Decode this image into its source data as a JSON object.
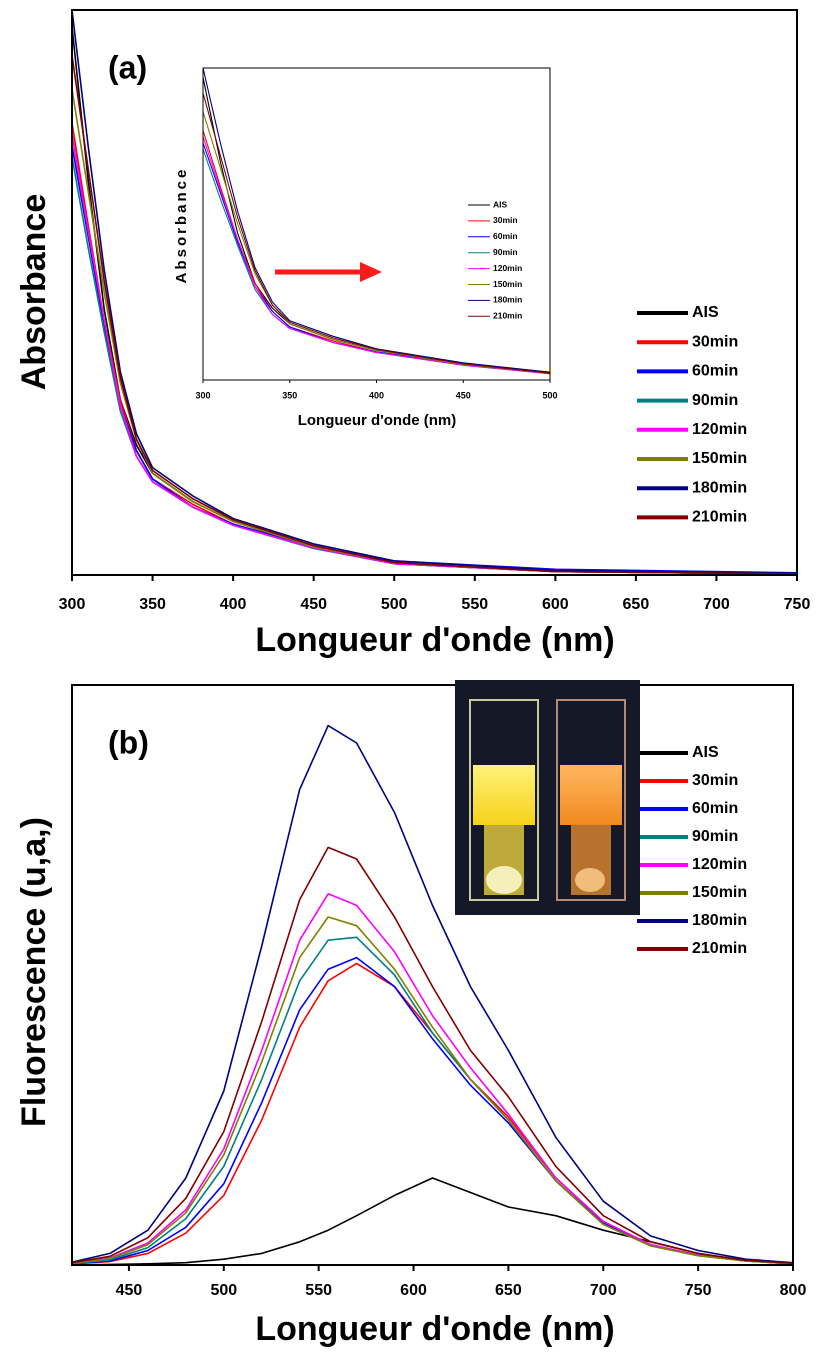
{
  "chart_data": [
    {
      "type": "line",
      "label": "(a)",
      "x_label": "Longueur d'onde (nm)",
      "y_label": "Absorbance",
      "x": [
        300,
        310,
        320,
        330,
        340,
        350,
        375,
        400,
        450,
        500,
        600,
        750
      ],
      "xlim": [
        300,
        750
      ],
      "xticks": [
        300,
        350,
        400,
        450,
        500,
        550,
        600,
        650,
        700,
        750
      ],
      "ylim": [
        0,
        1
      ],
      "series": [
        {
          "name": "AIS",
          "color": "#000000",
          "values": [
            0.97,
            0.7,
            0.47,
            0.31,
            0.23,
            0.18,
            0.13,
            0.095,
            0.05,
            0.02,
            0.006,
            0.002
          ]
        },
        {
          "name": "30min",
          "color": "#ff0000",
          "values": [
            0.8,
            0.62,
            0.45,
            0.31,
            0.22,
            0.17,
            0.125,
            0.09,
            0.048,
            0.02,
            0.006,
            0.002
          ]
        },
        {
          "name": "60min",
          "color": "#0000ff",
          "values": [
            0.76,
            0.6,
            0.44,
            0.3,
            0.22,
            0.17,
            0.12,
            0.09,
            0.05,
            0.025,
            0.01,
            0.004
          ]
        },
        {
          "name": "90min",
          "color": "#008080",
          "values": [
            0.74,
            0.58,
            0.43,
            0.29,
            0.21,
            0.165,
            0.12,
            0.088,
            0.047,
            0.02,
            0.006,
            0.002
          ]
        },
        {
          "name": "120min",
          "color": "#ff00ff",
          "values": [
            0.78,
            0.61,
            0.45,
            0.3,
            0.21,
            0.165,
            0.12,
            0.088,
            0.048,
            0.02,
            0.006,
            0.002
          ]
        },
        {
          "name": "150min",
          "color": "#808000",
          "values": [
            0.86,
            0.68,
            0.5,
            0.34,
            0.24,
            0.18,
            0.13,
            0.095,
            0.05,
            0.022,
            0.006,
            0.002
          ]
        },
        {
          "name": "180min",
          "color": "#000080",
          "values": [
            1.0,
            0.76,
            0.54,
            0.36,
            0.25,
            0.19,
            0.14,
            0.1,
            0.055,
            0.025,
            0.008,
            0.003
          ]
        },
        {
          "name": "210min",
          "color": "#800000",
          "values": [
            0.92,
            0.72,
            0.52,
            0.35,
            0.24,
            0.185,
            0.135,
            0.098,
            0.052,
            0.022,
            0.006,
            0.002
          ]
        }
      ]
    },
    {
      "type": "line",
      "x_label": "Longueur d'onde (nm)",
      "y_label": "Absorbance",
      "x": [
        300,
        310,
        320,
        330,
        340,
        350,
        375,
        400,
        450,
        500
      ],
      "xlim": [
        300,
        500
      ],
      "xticks": [
        300,
        350,
        400,
        450,
        500
      ],
      "ylim": [
        0,
        1
      ],
      "series": [
        {
          "name": "AIS",
          "color": "#000000",
          "values": [
            0.97,
            0.7,
            0.47,
            0.31,
            0.23,
            0.18,
            0.13,
            0.095,
            0.05,
            0.02
          ]
        },
        {
          "name": "30min",
          "color": "#ff0000",
          "values": [
            0.8,
            0.62,
            0.45,
            0.31,
            0.22,
            0.17,
            0.125,
            0.09,
            0.048,
            0.02
          ]
        },
        {
          "name": "60min",
          "color": "#0000ff",
          "values": [
            0.76,
            0.6,
            0.44,
            0.3,
            0.22,
            0.17,
            0.12,
            0.09,
            0.05,
            0.025
          ]
        },
        {
          "name": "90min",
          "color": "#008080",
          "values": [
            0.74,
            0.58,
            0.43,
            0.29,
            0.21,
            0.165,
            0.12,
            0.088,
            0.047,
            0.02
          ]
        },
        {
          "name": "120min",
          "color": "#ff00ff",
          "values": [
            0.78,
            0.61,
            0.45,
            0.3,
            0.21,
            0.165,
            0.12,
            0.088,
            0.048,
            0.02
          ]
        },
        {
          "name": "150min",
          "color": "#808000",
          "values": [
            0.86,
            0.68,
            0.5,
            0.34,
            0.24,
            0.18,
            0.13,
            0.095,
            0.05,
            0.022
          ]
        },
        {
          "name": "180min",
          "color": "#000080",
          "values": [
            1.0,
            0.76,
            0.54,
            0.36,
            0.25,
            0.19,
            0.14,
            0.1,
            0.055,
            0.025
          ]
        },
        {
          "name": "210min",
          "color": "#800000",
          "values": [
            0.92,
            0.72,
            0.52,
            0.35,
            0.24,
            0.185,
            0.135,
            0.098,
            0.052,
            0.022
          ]
        }
      ]
    },
    {
      "type": "line",
      "label": "(b)",
      "x_label": "Longueur d'onde (nm)",
      "y_label": "Fluorescence (u,a,)",
      "x": [
        420,
        440,
        460,
        480,
        500,
        520,
        540,
        555,
        570,
        590,
        610,
        630,
        650,
        675,
        700,
        725,
        750,
        775,
        800
      ],
      "xlim": [
        420,
        800
      ],
      "xticks": [
        450,
        500,
        550,
        600,
        650,
        700,
        750,
        800
      ],
      "ylim": [
        0,
        1
      ],
      "series": [
        {
          "name": "AIS",
          "color": "#000000",
          "values": [
            0,
            0.001,
            0.002,
            0.004,
            0.01,
            0.02,
            0.04,
            0.06,
            0.085,
            0.12,
            0.15,
            0.125,
            0.1,
            0.085,
            0.06,
            0.04,
            0.02,
            0.008,
            0.003
          ]
        },
        {
          "name": "30min",
          "color": "#ff0000",
          "values": [
            0.002,
            0.006,
            0.02,
            0.055,
            0.12,
            0.25,
            0.41,
            0.49,
            0.52,
            0.48,
            0.4,
            0.32,
            0.255,
            0.15,
            0.075,
            0.035,
            0.017,
            0.007,
            0.002
          ]
        },
        {
          "name": "60min",
          "color": "#0000ff",
          "values": [
            0.002,
            0.007,
            0.025,
            0.065,
            0.14,
            0.28,
            0.44,
            0.51,
            0.53,
            0.48,
            0.39,
            0.31,
            0.245,
            0.145,
            0.072,
            0.034,
            0.017,
            0.007,
            0.002
          ]
        },
        {
          "name": "90min",
          "color": "#008080",
          "values": [
            0.002,
            0.009,
            0.03,
            0.08,
            0.17,
            0.32,
            0.49,
            0.56,
            0.565,
            0.5,
            0.4,
            0.32,
            0.25,
            0.145,
            0.07,
            0.033,
            0.016,
            0.007,
            0.002
          ]
        },
        {
          "name": "120min",
          "color": "#ff00ff",
          "values": [
            0.003,
            0.012,
            0.038,
            0.095,
            0.2,
            0.37,
            0.56,
            0.64,
            0.62,
            0.54,
            0.43,
            0.34,
            0.26,
            0.15,
            0.075,
            0.035,
            0.017,
            0.007,
            0.003
          ]
        },
        {
          "name": "150min",
          "color": "#808000",
          "values": [
            0.003,
            0.011,
            0.035,
            0.09,
            0.19,
            0.35,
            0.53,
            0.6,
            0.585,
            0.51,
            0.41,
            0.32,
            0.25,
            0.145,
            0.07,
            0.033,
            0.016,
            0.007,
            0.002
          ]
        },
        {
          "name": "180min",
          "color": "#000080",
          "values": [
            0.005,
            0.02,
            0.06,
            0.15,
            0.3,
            0.55,
            0.82,
            0.93,
            0.9,
            0.78,
            0.62,
            0.48,
            0.37,
            0.22,
            0.11,
            0.05,
            0.025,
            0.01,
            0.004
          ]
        },
        {
          "name": "210min",
          "color": "#800000",
          "values": [
            0.004,
            0.015,
            0.047,
            0.115,
            0.23,
            0.42,
            0.63,
            0.72,
            0.7,
            0.6,
            0.48,
            0.37,
            0.29,
            0.17,
            0.085,
            0.04,
            0.02,
            0.008,
            0.003
          ]
        }
      ]
    }
  ]
}
